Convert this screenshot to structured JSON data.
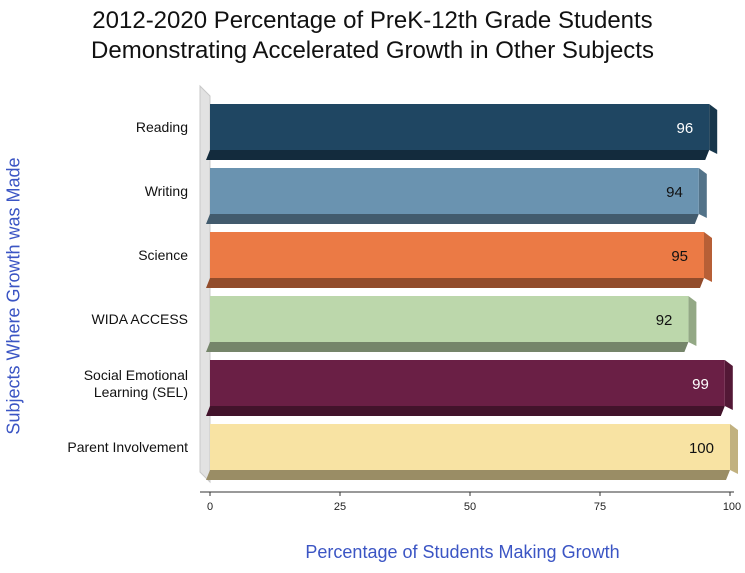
{
  "chart_data": {
    "type": "bar",
    "orientation": "horizontal",
    "title_lines": [
      "2012-2020 Percentage of PreK-12th Grade Students",
      "Demonstrating Accelerated Growth in Other Subjects"
    ],
    "xlabel": "Percentage of Students Making Growth",
    "ylabel": "Subjects Where Growth was Made",
    "xlim": [
      0,
      100
    ],
    "xticks": [
      0,
      25,
      50,
      75,
      100
    ],
    "categories": [
      [
        "Reading"
      ],
      [
        "Writing"
      ],
      [
        "Science"
      ],
      [
        "WIDA ACCESS"
      ],
      [
        "Social Emotional",
        "Learning (SEL)"
      ],
      [
        "Parent Involvement"
      ]
    ],
    "values": [
      96,
      94,
      95,
      92,
      99,
      100
    ],
    "colors": [
      "#1f4662",
      "#6a93b0",
      "#eb7a45",
      "#bcd7ab",
      "#6a1f45",
      "#f8e3a3"
    ],
    "label_colors": [
      "#ffffff",
      "#111111",
      "#111111",
      "#111111",
      "#ffffff",
      "#111111"
    ],
    "grid": false,
    "legend": "none"
  }
}
